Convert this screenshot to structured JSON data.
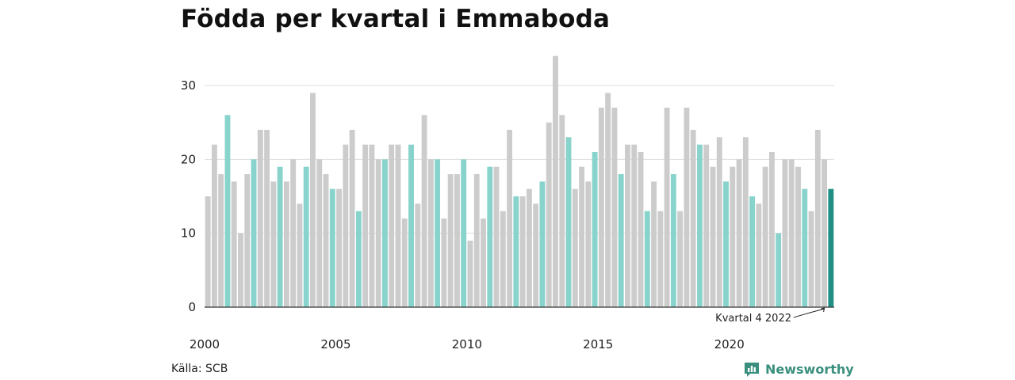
{
  "chart_data": {
    "type": "bar",
    "title": "Födda per kvartal i Emmaboda",
    "xlabel": "",
    "ylabel": "",
    "ylim": [
      0,
      34
    ],
    "y_ticks": [
      0,
      10,
      20,
      30
    ],
    "x_tick_labels": [
      "2000",
      "2005",
      "2010",
      "2015",
      "2020"
    ],
    "start_year": 2000,
    "highlight_quarter": 4,
    "colors": {
      "default": "#cccccc",
      "highlight_quarter": "#88d3cb",
      "latest": "#1e8f82",
      "grid": "#dddddd",
      "axis": "#333333"
    },
    "values": [
      15,
      22,
      18,
      26,
      17,
      10,
      18,
      20,
      24,
      24,
      17,
      19,
      17,
      20,
      14,
      19,
      29,
      20,
      18,
      16,
      16,
      22,
      24,
      13,
      22,
      22,
      20,
      20,
      22,
      22,
      12,
      22,
      14,
      26,
      20,
      20,
      12,
      18,
      18,
      20,
      9,
      18,
      12,
      19,
      19,
      13,
      24,
      15,
      15,
      16,
      14,
      17,
      25,
      34,
      26,
      23,
      16,
      19,
      17,
      21,
      27,
      29,
      27,
      18,
      22,
      22,
      21,
      13,
      17,
      13,
      27,
      18,
      13,
      27,
      24,
      22,
      22,
      19,
      23,
      17,
      19,
      20,
      23,
      15,
      14,
      19,
      21,
      10,
      20,
      20,
      19,
      16,
      13,
      24,
      20,
      16
    ],
    "annotation": "Kvartal 4 2022"
  },
  "source": "Källa: SCB",
  "brand": {
    "name": "Newsworthy",
    "icon": "bar-chart-icon",
    "color": "#3a8f7e"
  }
}
